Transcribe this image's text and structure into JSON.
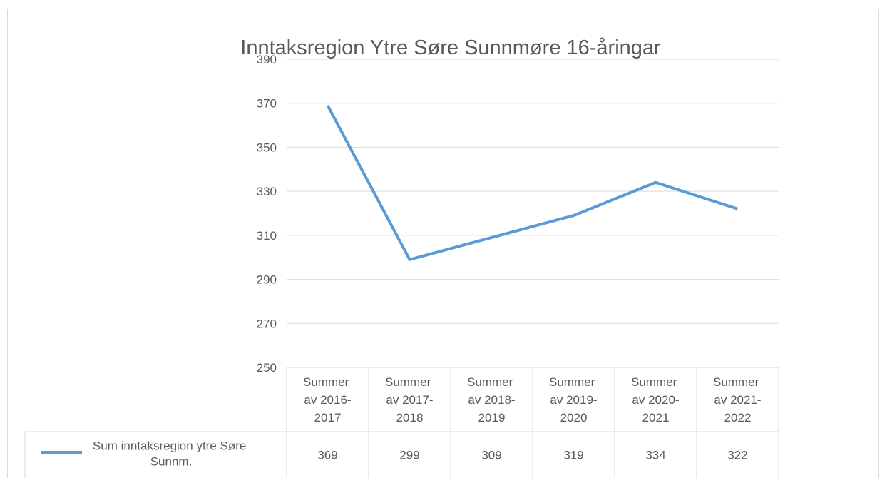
{
  "chart_data": {
    "type": "line",
    "title": "Inntaksregion Ytre Søre Sunnmøre 16-åringar",
    "categories": [
      "Summer av 2016-2017",
      "Summer av 2017-2018",
      "Summer av 2018-2019",
      "Summer av 2019-2020",
      "Summer av 2020-2021",
      "Summer av 2021-2022"
    ],
    "series": [
      {
        "name": "Sum inntaksregion ytre Søre Sunnm.",
        "color": "#5b9bd5",
        "values": [
          369,
          299,
          309,
          319,
          334,
          322
        ]
      }
    ],
    "ylim": [
      250,
      390
    ],
    "yticks": [
      250,
      270,
      290,
      310,
      330,
      350,
      370,
      390
    ],
    "grid": true
  }
}
